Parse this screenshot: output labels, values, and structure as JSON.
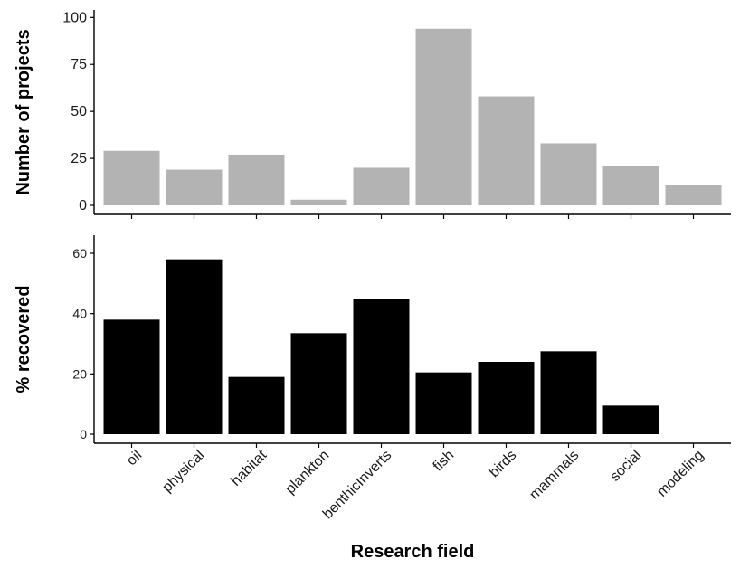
{
  "chart_data": [
    {
      "type": "bar",
      "categories": [
        "oil",
        "physical",
        "habitat",
        "plankton",
        "benthicInverts",
        "fish",
        "birds",
        "mammals",
        "social",
        "modeling"
      ],
      "values": [
        29,
        19,
        27,
        3,
        20,
        94,
        58,
        33,
        21,
        11
      ],
      "xlabel": "",
      "ylabel": "Number of projects",
      "ylim": [
        0,
        104
      ],
      "yticks": [
        0,
        25,
        50,
        75,
        100
      ],
      "bar_color": "#b3b3b3",
      "grid": false
    },
    {
      "type": "bar",
      "categories": [
        "oil",
        "physical",
        "habitat",
        "plankton",
        "benthicInverts",
        "fish",
        "birds",
        "mammals",
        "social",
        "modeling"
      ],
      "values": [
        38,
        58,
        19,
        33.5,
        45,
        20.5,
        24,
        27.5,
        9.5,
        0
      ],
      "xlabel": "Research field",
      "ylabel": "% recovered",
      "ylim": [
        0,
        66
      ],
      "yticks": [
        0,
        20,
        40,
        60
      ],
      "bar_color": "#000000",
      "grid": false
    }
  ]
}
